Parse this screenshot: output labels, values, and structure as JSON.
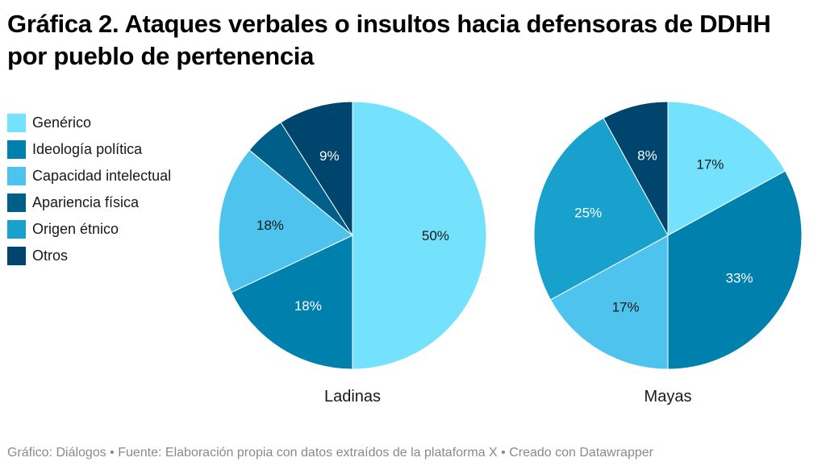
{
  "chart_data": {
    "type": "pie",
    "title": "Gráfica 2. Ataques verbales o insultos hacia defensoras de DDHH por pueblo de pertenencia",
    "legend": {
      "placement": "left",
      "entries": [
        {
          "name": "Genérico",
          "color": "#74e2fd"
        },
        {
          "name": "Ideología política",
          "color": "#0080ad"
        },
        {
          "name": "Capacidad intelectual",
          "color": "#4ec3ee"
        },
        {
          "name": "Apariencia física",
          "color": "#005f88"
        },
        {
          "name": "Origen étnico",
          "color": "#18a1cd"
        },
        {
          "name": "Otros",
          "color": "#00456e"
        }
      ]
    },
    "pies": [
      {
        "name": "Ladinas",
        "slices": [
          {
            "category": "Genérico",
            "value": 50,
            "label": "50%",
            "label_color": "#181818"
          },
          {
            "category": "Ideología política",
            "value": 18,
            "label": "18%",
            "label_color": "#ffffff"
          },
          {
            "category": "Capacidad intelectual",
            "value": 18,
            "label": "18%",
            "label_color": "#181818"
          },
          {
            "category": "Origen étnico",
            "value": 0,
            "label": "",
            "label_color": "#ffffff"
          },
          {
            "category": "Apariencia física",
            "value": 5,
            "label": "",
            "label_color": "#ffffff"
          },
          {
            "category": "Otros",
            "value": 9,
            "label": "9%",
            "label_color": "#ffffff"
          }
        ]
      },
      {
        "name": "Mayas",
        "slices": [
          {
            "category": "Genérico",
            "value": 17,
            "label": "17%",
            "label_color": "#181818"
          },
          {
            "category": "Ideología política",
            "value": 33,
            "label": "33%",
            "label_color": "#ffffff"
          },
          {
            "category": "Capacidad intelectual",
            "value": 17,
            "label": "17%",
            "label_color": "#181818"
          },
          {
            "category": "Origen étnico",
            "value": 25,
            "label": "25%",
            "label_color": "#ffffff"
          },
          {
            "category": "Apariencia física",
            "value": 0,
            "label": "",
            "label_color": "#ffffff"
          },
          {
            "category": "Otros",
            "value": 8,
            "label": "8%",
            "label_color": "#ffffff"
          }
        ]
      }
    ],
    "footer": "Gráfico: Diálogos • Fuente: Elaboración propia con datos extraídos de la plataforma X • Creado con Datawrapper"
  }
}
